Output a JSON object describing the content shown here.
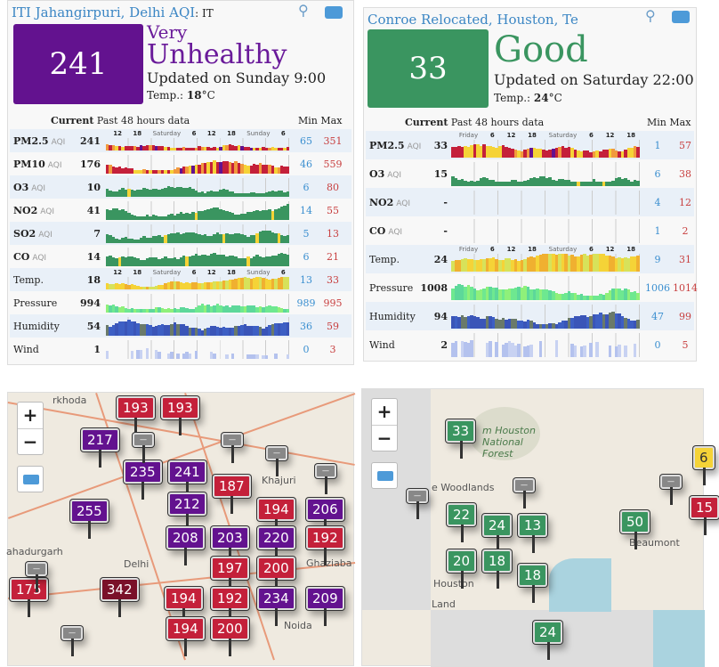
{
  "left": {
    "title": "ITI Jahangirpuri, Delhi AQI",
    "title_suffix": ": IT",
    "aqi": "241",
    "level_line1": "Very",
    "level_line2": "Unhealthy",
    "level_color": "#6a1b9a",
    "box_color": "#63128f",
    "updated": "Updated on Sunday 9:00",
    "temp_label": "Temp.:",
    "temp_value": "18",
    "temp_unit": "°C",
    "header": {
      "current": "Current",
      "past": "Past 48 hours data",
      "min": "Min",
      "max": "Max"
    },
    "ticks": [
      "12",
      "18",
      "Saturday",
      "6",
      "12",
      "18",
      "Sunday",
      "6"
    ],
    "temp_ticks": [
      "12",
      "18",
      "Saturday",
      "6",
      "12",
      "18",
      "Sunday",
      "6"
    ],
    "rows": [
      {
        "name": "PM2.5",
        "unit": "AQI",
        "current": "241",
        "min": "65",
        "max": "351"
      },
      {
        "name": "PM10",
        "unit": "AQI",
        "current": "176",
        "min": "46",
        "max": "559"
      },
      {
        "name": "O3",
        "unit": "AQI",
        "current": "10",
        "min": "6",
        "max": "80"
      },
      {
        "name": "NO2",
        "unit": "AQI",
        "current": "41",
        "min": "14",
        "max": "55"
      },
      {
        "name": "SO2",
        "unit": "AQI",
        "current": "7",
        "min": "5",
        "max": "13"
      },
      {
        "name": "CO",
        "unit": "AQI",
        "current": "14",
        "min": "6",
        "max": "21"
      },
      {
        "name": "Temp.",
        "unit": "",
        "current": "18",
        "min": "13",
        "max": "33"
      },
      {
        "name": "Pressure",
        "unit": "",
        "current": "994",
        "min": "989",
        "max": "995"
      },
      {
        "name": "Humidity",
        "unit": "",
        "current": "54",
        "min": "36",
        "max": "59"
      },
      {
        "name": "Wind",
        "unit": "",
        "current": "1",
        "min": "0",
        "max": "3"
      }
    ]
  },
  "right": {
    "title": "Conroe Relocated, Houston, Te",
    "aqi": "33",
    "level_line1": "Good",
    "level_color": "#3a9560",
    "box_color": "#3a9560",
    "updated": "Updated on Saturday 22:00",
    "temp_label": "Temp.:",
    "temp_value": "24",
    "temp_unit": "°C",
    "header": {
      "current": "Current",
      "past": "Past 48 hours data",
      "min": "Min",
      "max": "Max"
    },
    "ticks": [
      "Friday",
      "6",
      "12",
      "18",
      "Saturday",
      "6",
      "12",
      "18"
    ],
    "temp_ticks": [
      "Friday",
      "6",
      "12",
      "18",
      "Saturday",
      "6",
      "12",
      "18"
    ],
    "rows": [
      {
        "name": "PM2.5",
        "unit": "AQI",
        "current": "33",
        "min": "1",
        "max": "57"
      },
      {
        "name": "O3",
        "unit": "AQI",
        "current": "15",
        "min": "6",
        "max": "38"
      },
      {
        "name": "NO2",
        "unit": "AQI",
        "current": "-",
        "min": "4",
        "max": "12"
      },
      {
        "name": "CO",
        "unit": "AQI",
        "current": "-",
        "min": "1",
        "max": "2"
      },
      {
        "name": "Temp.",
        "unit": "",
        "current": "24",
        "min": "9",
        "max": "31"
      },
      {
        "name": "Pressure",
        "unit": "",
        "current": "1008",
        "min": "1006",
        "max": "1014"
      },
      {
        "name": "Humidity",
        "unit": "",
        "current": "94",
        "min": "47",
        "max": "99"
      },
      {
        "name": "Wind",
        "unit": "",
        "current": "2",
        "min": "0",
        "max": "5"
      }
    ]
  },
  "map_left": {
    "zoom_in": "+",
    "zoom_out": "−",
    "places": [
      "rkhoda",
      "ahadurgarh",
      "Delhi",
      "Khajuri",
      "Ghaziaba",
      "Noida"
    ],
    "markers": [
      "193",
      "193",
      "217",
      "235",
      "241",
      "212",
      "187",
      "255",
      "194",
      "206",
      "220",
      "208",
      "203",
      "200",
      "192",
      "197",
      "175",
      "342",
      "192",
      "194",
      "234",
      "209",
      "194",
      "200"
    ]
  },
  "map_right": {
    "zoom_in": "+",
    "zoom_out": "−",
    "places": [
      "m Houston National Forest",
      "e Woodlands",
      "Houston",
      "Beaumont",
      "Land"
    ],
    "markers": [
      "33",
      "22",
      "24",
      "13",
      "20",
      "18",
      "18",
      "50",
      "15",
      "6",
      "24"
    ]
  }
}
